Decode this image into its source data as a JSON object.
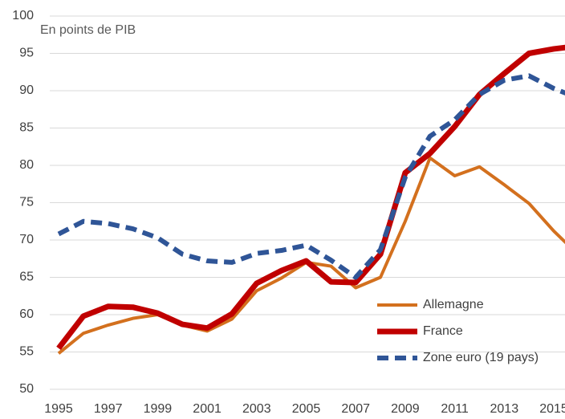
{
  "chart_data": {
    "type": "line",
    "annotation": "En points de PIB",
    "categories": [
      "1995",
      null,
      "1997",
      null,
      "1999",
      null,
      "2001",
      null,
      "2003",
      null,
      "2005",
      null,
      "2007",
      null,
      "2009",
      null,
      "2011",
      null,
      "2013",
      null,
      "2015",
      null
    ],
    "series": [
      {
        "name": "Allemagne",
        "color": "#d3701e",
        "values": [
          54.8,
          57.5,
          58.6,
          59.5,
          60,
          58.6,
          57.8,
          59.4,
          63.2,
          64.9,
          67,
          66.5,
          63.6,
          65,
          72.5,
          81,
          78.6,
          79.8,
          77.4,
          74.9,
          71.2,
          68
        ]
      },
      {
        "name": "France",
        "color": "#c00000",
        "values": [
          55.5,
          59.8,
          61.1,
          61,
          60.2,
          58.7,
          58.2,
          60.1,
          64.2,
          65.9,
          67.2,
          64.4,
          64.3,
          68.1,
          79,
          81.6,
          85.2,
          89.5,
          92.3,
          95,
          95.6,
          96
        ]
      },
      {
        "name": "Zone euro (19 pays)",
        "color": "#2f5597",
        "dashed": true,
        "values": [
          70.8,
          72.5,
          72.2,
          71.5,
          70.3,
          68.1,
          67.2,
          67,
          68.2,
          68.6,
          69.3,
          67.3,
          65,
          68.7,
          78.4,
          83.9,
          86.1,
          89.5,
          91.4,
          92,
          90.3,
          89
        ]
      }
    ],
    "ylim": [
      50,
      100
    ],
    "yticks": [
      50,
      55,
      60,
      65,
      70,
      75,
      80,
      85,
      90,
      95,
      100
    ],
    "grid": true,
    "legend": "lower right"
  }
}
